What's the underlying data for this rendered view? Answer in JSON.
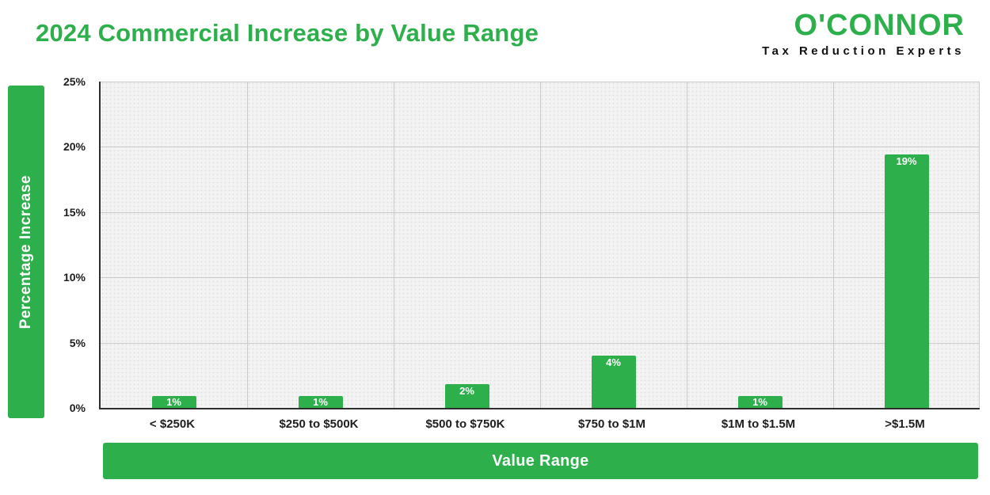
{
  "title": "2024 Commercial Increase by Value Range",
  "logo": {
    "name": "O'CONNOR",
    "tagline": "Tax Reduction Experts"
  },
  "colors": {
    "accent": "#2DB04B",
    "plot_background": "#f3f3f3",
    "grid": "#c9c9c9",
    "text": "#1d1d1d",
    "bar_label": "#ffffff"
  },
  "chart_data": {
    "type": "bar",
    "title": "2024 Commercial Increase by Value Range",
    "xlabel": "Value Range",
    "ylabel": "Percentage Increase",
    "categories": [
      "< $250K",
      "$250 to $500K",
      "$500 to $750K",
      "$750 to $1M",
      "$1M to $1.5M",
      ">$1.5M"
    ],
    "values": [
      0.9,
      0.9,
      1.8,
      4.0,
      0.9,
      19.4
    ],
    "labels": [
      "1%",
      "1%",
      "2%",
      "4%",
      "1%",
      "19%"
    ],
    "ylim": [
      0,
      25
    ],
    "yticks": [
      "0%",
      "5%",
      "10%",
      "15%",
      "20%",
      "25%"
    ],
    "ytick_values": [
      0,
      5,
      10,
      15,
      20,
      25
    ],
    "grid": true,
    "legend": "none",
    "bar_color": "#2DB04B"
  }
}
